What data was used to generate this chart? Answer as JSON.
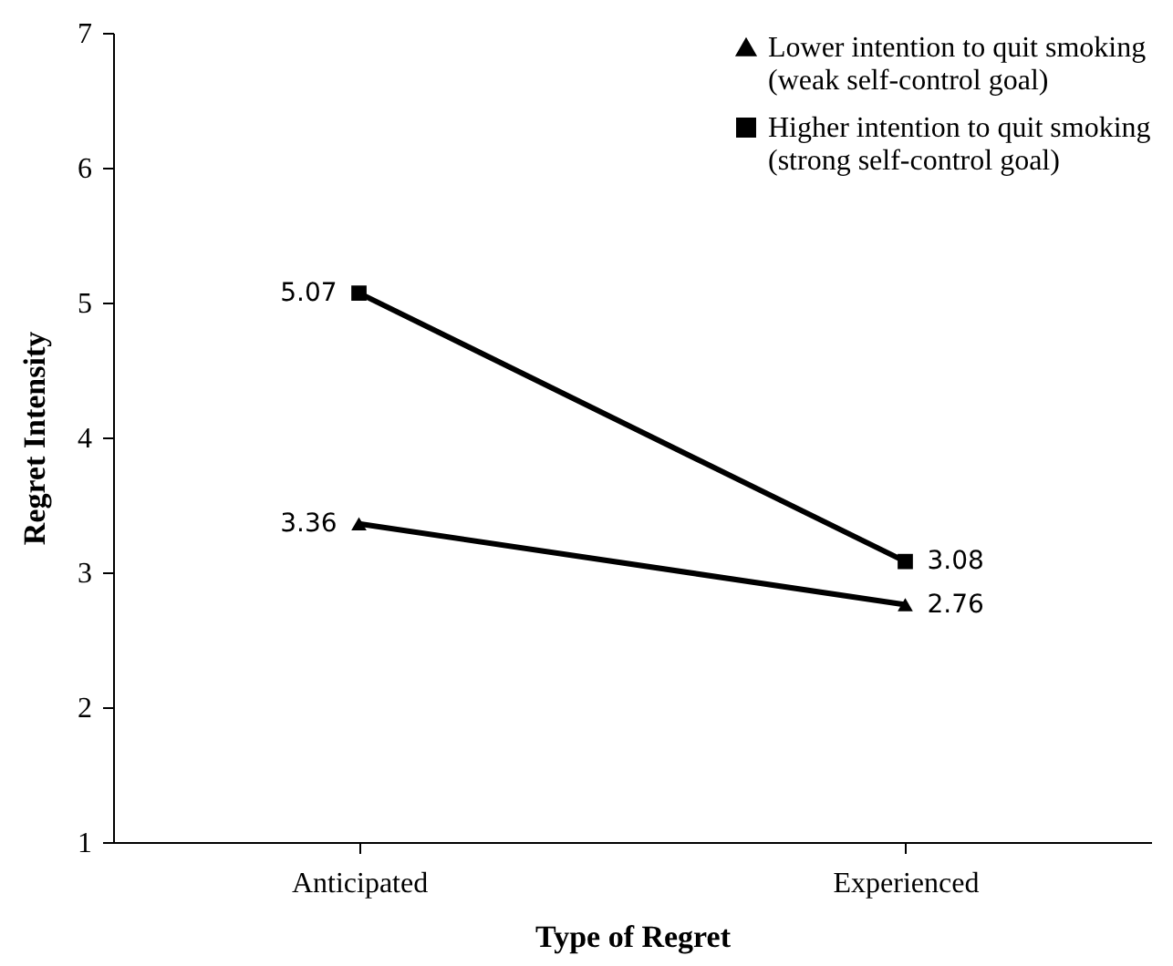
{
  "chart_data": {
    "type": "line",
    "xlabel": "Type of Regret",
    "ylabel": "Regret Intensity",
    "categories": [
      "Anticipated",
      "Experienced"
    ],
    "series": [
      {
        "name": "Lower intention to quit smoking (weak self-control goal)",
        "color": "#000000",
        "marker": "triangle",
        "values": [
          3.36,
          2.76
        ]
      },
      {
        "name": "Higher intention to quit smoking (strong self-control goal)",
        "color": "#000000",
        "marker": "square",
        "values": [
          5.07,
          3.08
        ]
      }
    ],
    "ylim": [
      1,
      7
    ],
    "yticks": [
      1,
      2,
      3,
      4,
      5,
      6,
      7
    ],
    "grid": false,
    "legend": "top right",
    "data_labels": true,
    "line_style": "solid"
  }
}
